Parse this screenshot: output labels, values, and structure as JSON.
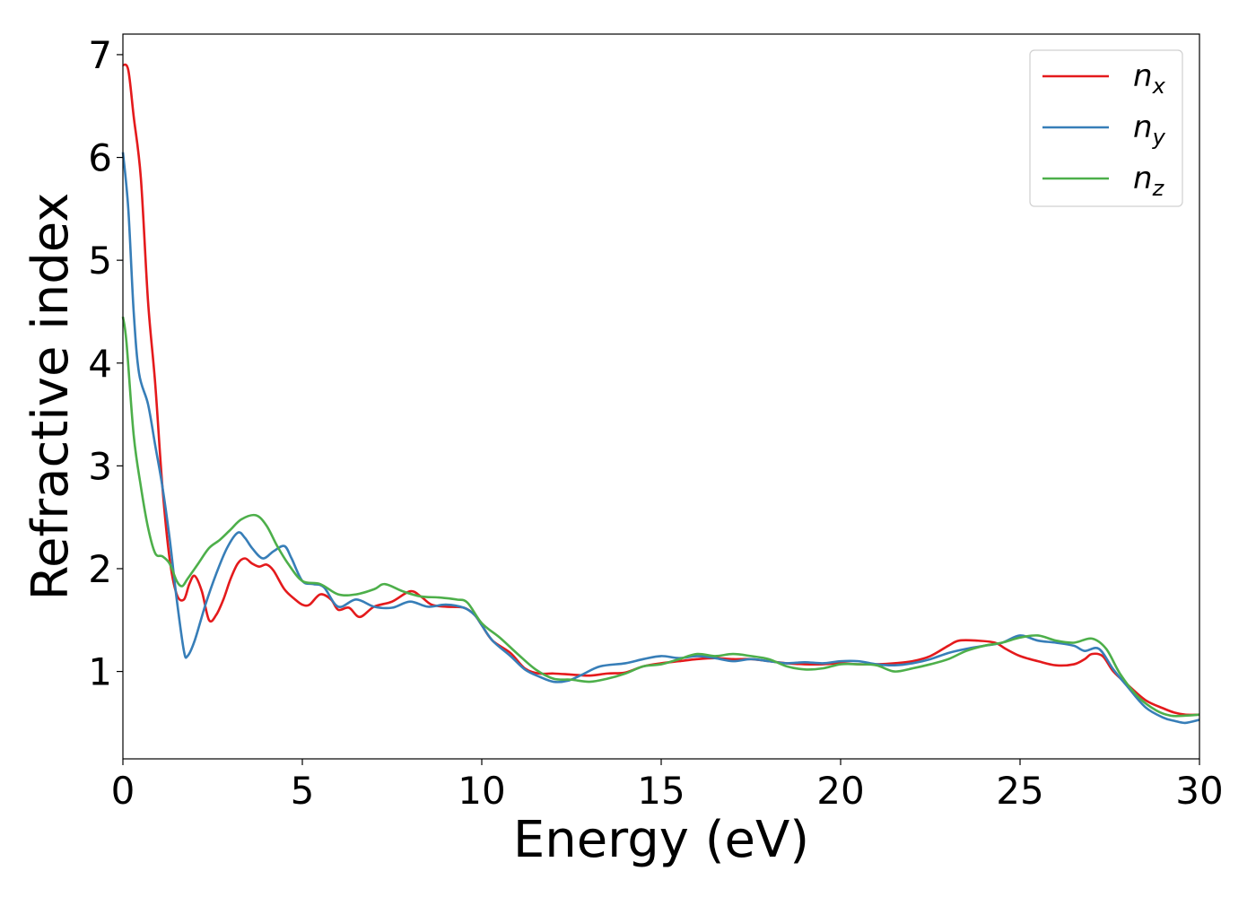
{
  "chart_data": {
    "type": "line",
    "xlabel": "Energy (eV)",
    "ylabel": "Refractive index",
    "xlim": [
      0,
      30
    ],
    "ylim": [
      0.15,
      7.2
    ],
    "xticks": [
      0,
      5,
      10,
      15,
      20,
      25,
      30
    ],
    "yticks": [
      1,
      2,
      3,
      4,
      5,
      6,
      7
    ],
    "grid": false,
    "legend_position": "top-right",
    "series": [
      {
        "name": "n",
        "subscript": "x",
        "color": "#e41a1c",
        "points": [
          [
            0,
            6.9
          ],
          [
            0.15,
            6.85
          ],
          [
            0.3,
            6.4
          ],
          [
            0.5,
            5.8
          ],
          [
            0.7,
            4.6
          ],
          [
            0.9,
            3.8
          ],
          [
            1.1,
            2.8
          ],
          [
            1.3,
            2.1
          ],
          [
            1.5,
            1.75
          ],
          [
            1.7,
            1.7
          ],
          [
            1.85,
            1.85
          ],
          [
            2.0,
            1.93
          ],
          [
            2.2,
            1.78
          ],
          [
            2.4,
            1.5
          ],
          [
            2.6,
            1.55
          ],
          [
            2.8,
            1.7
          ],
          [
            3.0,
            1.9
          ],
          [
            3.2,
            2.05
          ],
          [
            3.4,
            2.1
          ],
          [
            3.6,
            2.05
          ],
          [
            3.8,
            2.02
          ],
          [
            4.0,
            2.04
          ],
          [
            4.2,
            1.98
          ],
          [
            4.5,
            1.8
          ],
          [
            4.8,
            1.7
          ],
          [
            5.0,
            1.65
          ],
          [
            5.2,
            1.65
          ],
          [
            5.5,
            1.75
          ],
          [
            5.8,
            1.7
          ],
          [
            6.0,
            1.6
          ],
          [
            6.3,
            1.62
          ],
          [
            6.6,
            1.53
          ],
          [
            7.0,
            1.63
          ],
          [
            7.5,
            1.68
          ],
          [
            8.0,
            1.78
          ],
          [
            8.3,
            1.73
          ],
          [
            8.6,
            1.65
          ],
          [
            9.0,
            1.63
          ],
          [
            9.5,
            1.62
          ],
          [
            9.8,
            1.55
          ],
          [
            10.0,
            1.45
          ],
          [
            10.3,
            1.3
          ],
          [
            10.8,
            1.18
          ],
          [
            11.2,
            1.03
          ],
          [
            11.6,
            0.98
          ],
          [
            12.0,
            0.98
          ],
          [
            12.5,
            0.97
          ],
          [
            13.0,
            0.96
          ],
          [
            13.5,
            0.98
          ],
          [
            14.0,
            0.99
          ],
          [
            14.5,
            1.05
          ],
          [
            15.0,
            1.08
          ],
          [
            15.5,
            1.1
          ],
          [
            16.0,
            1.12
          ],
          [
            16.5,
            1.13
          ],
          [
            17.0,
            1.12
          ],
          [
            17.5,
            1.12
          ],
          [
            18.0,
            1.1
          ],
          [
            18.5,
            1.08
          ],
          [
            19.0,
            1.07
          ],
          [
            19.5,
            1.07
          ],
          [
            20.0,
            1.08
          ],
          [
            20.5,
            1.07
          ],
          [
            21.0,
            1.07
          ],
          [
            21.5,
            1.08
          ],
          [
            22.0,
            1.1
          ],
          [
            22.5,
            1.15
          ],
          [
            23.0,
            1.25
          ],
          [
            23.3,
            1.3
          ],
          [
            23.8,
            1.3
          ],
          [
            24.3,
            1.28
          ],
          [
            24.6,
            1.22
          ],
          [
            25.0,
            1.15
          ],
          [
            25.5,
            1.1
          ],
          [
            26.0,
            1.06
          ],
          [
            26.5,
            1.07
          ],
          [
            26.8,
            1.12
          ],
          [
            27.0,
            1.17
          ],
          [
            27.3,
            1.15
          ],
          [
            27.6,
            1.0
          ],
          [
            28.0,
            0.87
          ],
          [
            28.5,
            0.72
          ],
          [
            29.0,
            0.64
          ],
          [
            29.3,
            0.6
          ],
          [
            29.6,
            0.58
          ],
          [
            30.0,
            0.58
          ]
        ]
      },
      {
        "name": "n",
        "subscript": "y",
        "color": "#377eb8",
        "points": [
          [
            0,
            6.05
          ],
          [
            0.15,
            5.5
          ],
          [
            0.3,
            4.5
          ],
          [
            0.45,
            3.9
          ],
          [
            0.7,
            3.6
          ],
          [
            0.9,
            3.2
          ],
          [
            1.1,
            2.8
          ],
          [
            1.3,
            2.3
          ],
          [
            1.5,
            1.7
          ],
          [
            1.7,
            1.2
          ],
          [
            1.8,
            1.15
          ],
          [
            2.0,
            1.3
          ],
          [
            2.3,
            1.65
          ],
          [
            2.6,
            1.95
          ],
          [
            2.9,
            2.2
          ],
          [
            3.2,
            2.35
          ],
          [
            3.4,
            2.3
          ],
          [
            3.6,
            2.2
          ],
          [
            3.9,
            2.1
          ],
          [
            4.2,
            2.17
          ],
          [
            4.5,
            2.22
          ],
          [
            4.7,
            2.1
          ],
          [
            5.0,
            1.88
          ],
          [
            5.3,
            1.85
          ],
          [
            5.6,
            1.82
          ],
          [
            6.0,
            1.63
          ],
          [
            6.5,
            1.7
          ],
          [
            7.0,
            1.63
          ],
          [
            7.5,
            1.62
          ],
          [
            8.0,
            1.68
          ],
          [
            8.5,
            1.63
          ],
          [
            9.0,
            1.65
          ],
          [
            9.5,
            1.62
          ],
          [
            9.8,
            1.55
          ],
          [
            10.0,
            1.45
          ],
          [
            10.3,
            1.3
          ],
          [
            10.8,
            1.15
          ],
          [
            11.2,
            1.02
          ],
          [
            11.6,
            0.95
          ],
          [
            12.0,
            0.9
          ],
          [
            12.4,
            0.91
          ],
          [
            12.8,
            0.97
          ],
          [
            13.3,
            1.05
          ],
          [
            14.0,
            1.08
          ],
          [
            14.5,
            1.12
          ],
          [
            15.0,
            1.15
          ],
          [
            15.5,
            1.13
          ],
          [
            16.0,
            1.15
          ],
          [
            16.5,
            1.13
          ],
          [
            17.0,
            1.1
          ],
          [
            17.5,
            1.12
          ],
          [
            18.0,
            1.1
          ],
          [
            18.5,
            1.08
          ],
          [
            19.0,
            1.09
          ],
          [
            19.5,
            1.08
          ],
          [
            20.0,
            1.1
          ],
          [
            20.5,
            1.1
          ],
          [
            21.0,
            1.07
          ],
          [
            21.5,
            1.06
          ],
          [
            22.0,
            1.08
          ],
          [
            22.5,
            1.12
          ],
          [
            23.0,
            1.18
          ],
          [
            23.5,
            1.22
          ],
          [
            24.0,
            1.25
          ],
          [
            24.5,
            1.28
          ],
          [
            25.0,
            1.35
          ],
          [
            25.5,
            1.3
          ],
          [
            26.0,
            1.28
          ],
          [
            26.5,
            1.25
          ],
          [
            26.8,
            1.2
          ],
          [
            27.2,
            1.22
          ],
          [
            27.6,
            1.02
          ],
          [
            28.0,
            0.85
          ],
          [
            28.5,
            0.65
          ],
          [
            29.0,
            0.55
          ],
          [
            29.3,
            0.52
          ],
          [
            29.6,
            0.5
          ],
          [
            30.0,
            0.53
          ]
        ]
      },
      {
        "name": "n",
        "subscript": "z",
        "color": "#4daf4a",
        "points": [
          [
            0,
            4.45
          ],
          [
            0.1,
            4.2
          ],
          [
            0.3,
            3.3
          ],
          [
            0.5,
            2.8
          ],
          [
            0.7,
            2.4
          ],
          [
            0.9,
            2.15
          ],
          [
            1.1,
            2.12
          ],
          [
            1.3,
            2.05
          ],
          [
            1.5,
            1.88
          ],
          [
            1.65,
            1.83
          ],
          [
            1.8,
            1.9
          ],
          [
            2.1,
            2.05
          ],
          [
            2.4,
            2.2
          ],
          [
            2.7,
            2.28
          ],
          [
            3.0,
            2.38
          ],
          [
            3.3,
            2.48
          ],
          [
            3.7,
            2.52
          ],
          [
            4.0,
            2.42
          ],
          [
            4.3,
            2.22
          ],
          [
            4.6,
            2.05
          ],
          [
            5.0,
            1.88
          ],
          [
            5.5,
            1.85
          ],
          [
            6.0,
            1.75
          ],
          [
            6.5,
            1.75
          ],
          [
            7.0,
            1.8
          ],
          [
            7.3,
            1.85
          ],
          [
            7.8,
            1.78
          ],
          [
            8.3,
            1.73
          ],
          [
            8.8,
            1.72
          ],
          [
            9.3,
            1.7
          ],
          [
            9.6,
            1.67
          ],
          [
            10.0,
            1.47
          ],
          [
            10.5,
            1.33
          ],
          [
            11.0,
            1.17
          ],
          [
            11.5,
            1.02
          ],
          [
            12.0,
            0.93
          ],
          [
            12.5,
            0.92
          ],
          [
            13.0,
            0.9
          ],
          [
            13.5,
            0.93
          ],
          [
            14.0,
            0.98
          ],
          [
            14.5,
            1.05
          ],
          [
            15.0,
            1.07
          ],
          [
            15.5,
            1.12
          ],
          [
            16.0,
            1.17
          ],
          [
            16.5,
            1.15
          ],
          [
            17.0,
            1.17
          ],
          [
            17.5,
            1.15
          ],
          [
            18.0,
            1.12
          ],
          [
            18.5,
            1.05
          ],
          [
            19.0,
            1.02
          ],
          [
            19.5,
            1.03
          ],
          [
            20.0,
            1.07
          ],
          [
            20.5,
            1.07
          ],
          [
            21.0,
            1.06
          ],
          [
            21.5,
            1.0
          ],
          [
            22.0,
            1.03
          ],
          [
            22.5,
            1.07
          ],
          [
            23.0,
            1.12
          ],
          [
            23.5,
            1.2
          ],
          [
            24.0,
            1.25
          ],
          [
            24.5,
            1.28
          ],
          [
            25.0,
            1.33
          ],
          [
            25.5,
            1.35
          ],
          [
            26.0,
            1.3
          ],
          [
            26.5,
            1.28
          ],
          [
            27.0,
            1.32
          ],
          [
            27.4,
            1.22
          ],
          [
            27.8,
            0.97
          ],
          [
            28.3,
            0.75
          ],
          [
            28.8,
            0.62
          ],
          [
            29.2,
            0.57
          ],
          [
            29.6,
            0.57
          ],
          [
            30.0,
            0.58
          ]
        ]
      }
    ]
  }
}
